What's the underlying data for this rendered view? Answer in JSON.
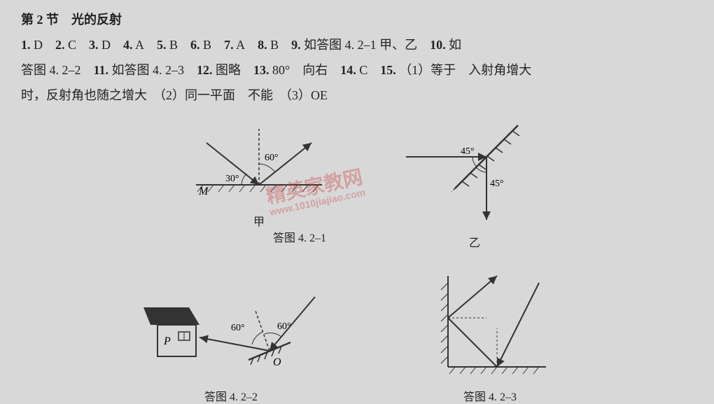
{
  "header": "第 2 节　光的反射",
  "answers_line1": [
    {
      "n": "1.",
      "v": "D"
    },
    {
      "n": "2.",
      "v": "C"
    },
    {
      "n": "3.",
      "v": "D"
    },
    {
      "n": "4.",
      "v": "A"
    },
    {
      "n": "5.",
      "v": "B"
    },
    {
      "n": "6.",
      "v": "B"
    },
    {
      "n": "7.",
      "v": "A"
    },
    {
      "n": "8.",
      "v": "B"
    },
    {
      "n": "9.",
      "v": "如答图 4. 2–1 甲、乙"
    },
    {
      "n": "10.",
      "v": "如"
    }
  ],
  "answers_line2_parts": [
    "答图 4. 2–2",
    {
      "n": "11.",
      "v": "如答图 4. 2–3"
    },
    {
      "n": "12.",
      "v": "图略"
    },
    {
      "n": "13.",
      "v": "80°　向右"
    },
    {
      "n": "14.",
      "v": "C"
    },
    {
      "n": "15.",
      "v": "（1）等于　入射角增大"
    }
  ],
  "answers_line3": "时，反射角也随之增大　（2）同一平面　不能　（3）OE",
  "diagram_4_2_1": {
    "caption": "答图 4. 2–1",
    "left_label_M": "M",
    "left_angle_30": "30°",
    "left_angle_60": "60°",
    "left_sub": "甲",
    "right_angle_45a": "45°",
    "right_angle_45b": "45°",
    "right_sub": "乙",
    "stroke": "#333",
    "hatch_color": "#333"
  },
  "diagram_4_2_2": {
    "caption": "答图 4. 2–2",
    "label_P": "P",
    "label_O": "O",
    "angle_60a": "60°",
    "angle_60b": "60°",
    "stroke": "#333"
  },
  "diagram_4_2_3": {
    "caption": "答图 4. 2–3",
    "stroke": "#333"
  },
  "watermark": {
    "main": "精英家教网",
    "sub": "www.1010jiajiao.com"
  }
}
